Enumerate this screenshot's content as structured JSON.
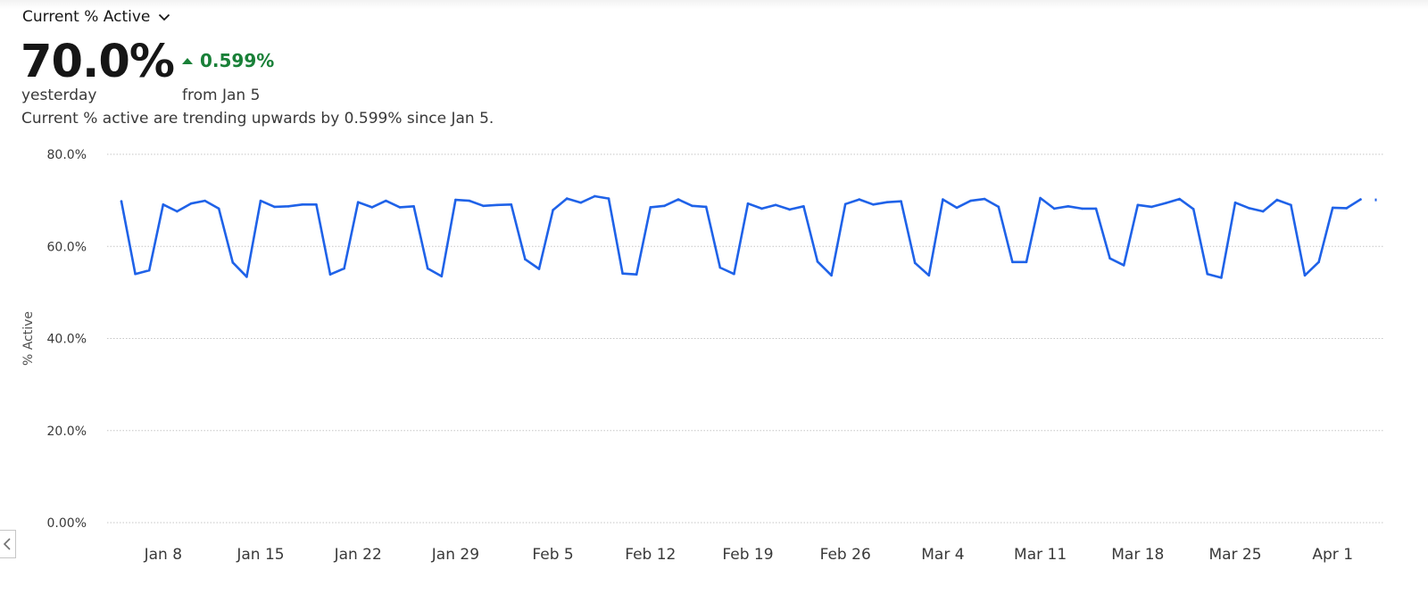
{
  "header": {
    "metric_selector_label": "Current % Active",
    "value": "70.0%",
    "value_caption": "yesterday",
    "delta_value": "0.599%",
    "delta_caption": "from Jan 5",
    "description": "Current % active are trending upwards by 0.599% since Jan 5."
  },
  "colors": {
    "line": "#1f62e8",
    "positive": "#198038",
    "grid": "#c6c6c6"
  },
  "icons": {
    "dropdown": "chevron-down-icon",
    "delta": "triangle-up-icon",
    "back": "chevron-left-icon"
  },
  "chart_data": {
    "type": "line",
    "title": "",
    "xlabel": "",
    "ylabel": "% Active",
    "ylim": [
      0,
      80
    ],
    "y_ticks": [
      "0.00%",
      "20.0%",
      "40.0%",
      "60.0%",
      "80.0%"
    ],
    "y_tick_values": [
      0,
      20,
      40,
      60,
      80
    ],
    "x_start": "Jan 5",
    "x_end": "Apr 3",
    "x_tick_labels": [
      "Jan 8",
      "Jan 15",
      "Jan 22",
      "Jan 29",
      "Feb 5",
      "Feb 12",
      "Feb 19",
      "Feb 26",
      "Mar 4",
      "Mar 11",
      "Mar 18",
      "Mar 25",
      "Apr 1"
    ],
    "x_tick_days": [
      3,
      10,
      17,
      24,
      31,
      38,
      45,
      52,
      59,
      66,
      73,
      80,
      87
    ],
    "grid": true,
    "series": [
      {
        "values": [
          69.8,
          54.0,
          54.8,
          69.1,
          67.6,
          69.3,
          69.9,
          68.2,
          56.5,
          53.4,
          69.9,
          68.6,
          68.7,
          69.1,
          69.1,
          53.9,
          55.2,
          69.6,
          68.5,
          69.9,
          68.5,
          68.7,
          55.2,
          53.5,
          70.1,
          69.9,
          68.8,
          69.0,
          69.1,
          57.2,
          55.1,
          67.9,
          70.4,
          69.5,
          70.9,
          70.4,
          54.1,
          53.9,
          68.5,
          68.8,
          70.2,
          68.8,
          68.6,
          55.4,
          54.0,
          69.3,
          68.2,
          69.0,
          68.0,
          68.7,
          56.7,
          53.7,
          69.2,
          70.2,
          69.1,
          69.6,
          69.8,
          56.4,
          53.7,
          70.2,
          68.4,
          69.9,
          70.3,
          68.6,
          56.6,
          56.6,
          70.5,
          68.2,
          68.7,
          68.2,
          68.2,
          57.4,
          55.9,
          69.0,
          68.6,
          69.4,
          70.3,
          68.1,
          54.0,
          53.2,
          69.5,
          68.3,
          67.6,
          70.1,
          69.0,
          53.7,
          56.6,
          68.4,
          68.3,
          70.2
        ]
      }
    ],
    "trailing_point": 70.1
  }
}
